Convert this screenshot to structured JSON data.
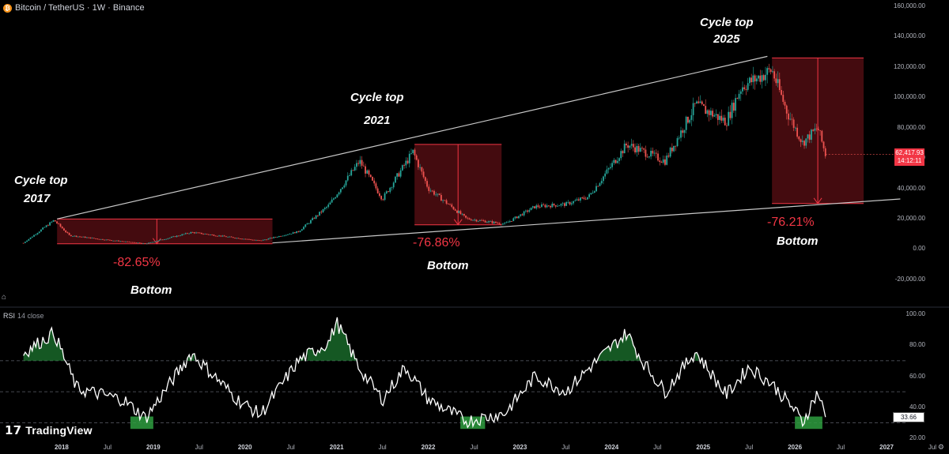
{
  "header": {
    "symbol_label": "Bitcoin / TetherUS · 1W · Binance",
    "coin_glyph": "₿"
  },
  "rsi_header": {
    "label": "RSI",
    "params": "14 close"
  },
  "branding": {
    "logo_mark": "𝟭𝟳",
    "logo_text": "TradingView"
  },
  "annotations": {
    "top_2017": [
      "Cycle top",
      "2017"
    ],
    "top_2021": [
      "Cycle top",
      "2021"
    ],
    "top_2025": [
      "Cycle top",
      "2025"
    ],
    "pct_2017": "-82.65%",
    "pct_2021": "-76.86%",
    "pct_2025": "-76.21%",
    "bottom": "Bottom"
  },
  "price_axis": {
    "ticks": [
      "160,000.00",
      "140,000.00",
      "120,000.00",
      "100,000.00",
      "80,000.00",
      "60,000.00",
      "40,000.00",
      "20,000.00",
      "0.00",
      "-20,000.00"
    ],
    "current_price": "62,417.93",
    "countdown": "14:12:11"
  },
  "rsi_axis": {
    "ticks": [
      "100.00",
      "80.00",
      "60.00",
      "40.00",
      "20.00"
    ],
    "current": "33.66"
  },
  "time_axis": {
    "ticks": [
      {
        "label": "2018",
        "year": true
      },
      {
        "label": "Jul",
        "year": false
      },
      {
        "label": "2019",
        "year": true
      },
      {
        "label": "Jul",
        "year": false
      },
      {
        "label": "2020",
        "year": true
      },
      {
        "label": "Jul",
        "year": false
      },
      {
        "label": "2021",
        "year": true
      },
      {
        "label": "Jul",
        "year": false
      },
      {
        "label": "2022",
        "year": true
      },
      {
        "label": "Jul",
        "year": false
      },
      {
        "label": "2023",
        "year": true
      },
      {
        "label": "Jul",
        "year": false
      },
      {
        "label": "2024",
        "year": true
      },
      {
        "label": "Jul",
        "year": false
      },
      {
        "label": "2025",
        "year": true
      },
      {
        "label": "Jul",
        "year": false
      },
      {
        "label": "2026",
        "year": true
      },
      {
        "label": "Jul",
        "year": false
      },
      {
        "label": "2027",
        "year": true
      },
      {
        "label": "Jul",
        "year": false
      }
    ]
  },
  "colors": {
    "up": "#26a69a",
    "down": "#ef5350",
    "box_line": "#f23645",
    "box_fill": "#5b0f14",
    "trend": "#c8c8c8",
    "rsi_line": "#ffffff",
    "rsi_fill": "#1e7d32"
  },
  "chart_data": [
    {
      "type": "candlestick",
      "title": "Bitcoin / TetherUS · 1W · Binance",
      "ylim": [
        -30000,
        160000
      ],
      "x": [
        "2017-08",
        "2017-12",
        "2018-02",
        "2018-06",
        "2018-12",
        "2019-06",
        "2019-12",
        "2020-03",
        "2020-08",
        "2020-12",
        "2021-04",
        "2021-07",
        "2021-11",
        "2022-01",
        "2022-06",
        "2022-11",
        "2023-03",
        "2023-07",
        "2023-10",
        "2024-03",
        "2024-08",
        "2024-12",
        "2025-04",
        "2025-06",
        "2025-10",
        "2025-12",
        "2026-02",
        "2026-04",
        "2026-05"
      ],
      "close": [
        4000,
        19000,
        9000,
        6500,
        3500,
        11000,
        7200,
        5500,
        11500,
        29000,
        58000,
        33000,
        64000,
        40000,
        20000,
        16500,
        28000,
        29500,
        34500,
        69000,
        58000,
        95000,
        84000,
        107000,
        118000,
        90000,
        70000,
        80000,
        62418
      ],
      "current_price": 62417.93,
      "cycle_tops": [
        {
          "label": "2017",
          "value": 19800
        },
        {
          "label": "2021",
          "value": 69000
        },
        {
          "label": "2025",
          "value": 126000
        }
      ],
      "drawdowns": [
        "-82.65%",
        "-76.86%",
        "-76.21%"
      ]
    },
    {
      "type": "line",
      "title": "RSI 14 close",
      "ylim": [
        20,
        100
      ],
      "levels": [
        70,
        50,
        30
      ],
      "x": [
        "2017-08",
        "2017-12",
        "2018-03",
        "2018-09",
        "2018-12",
        "2019-06",
        "2019-12",
        "2020-03",
        "2020-08",
        "2020-12",
        "2021-01",
        "2021-04",
        "2021-07",
        "2021-10",
        "2022-01",
        "2022-06",
        "2022-11",
        "2023-03",
        "2023-07",
        "2023-10",
        "2024-03",
        "2024-05",
        "2024-08",
        "2024-12",
        "2025-04",
        "2025-07",
        "2025-10",
        "2026-01",
        "2026-02",
        "2026-04",
        "2026-05"
      ],
      "values": [
        75,
        88,
        52,
        45,
        33,
        75,
        45,
        35,
        70,
        82,
        95,
        65,
        45,
        66,
        45,
        31,
        36,
        60,
        50,
        65,
        88,
        70,
        50,
        76,
        48,
        66,
        55,
        38,
        30,
        50,
        33.66
      ],
      "current": 33.66
    }
  ]
}
